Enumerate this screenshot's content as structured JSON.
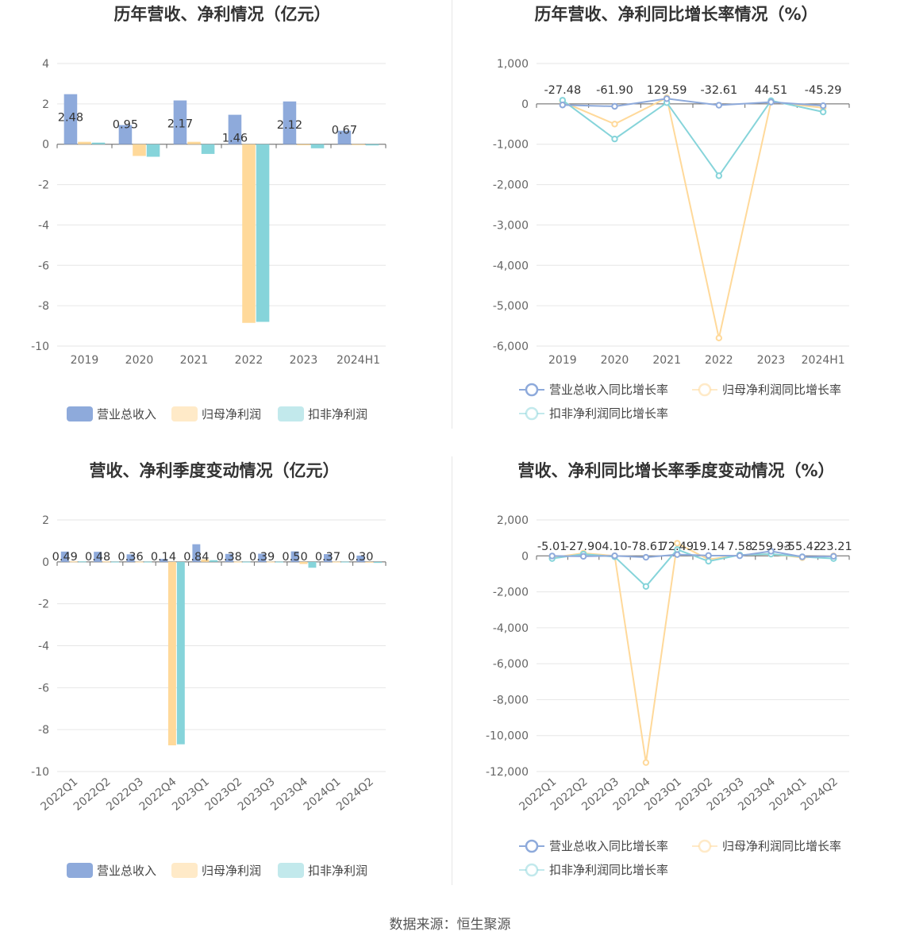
{
  "footer": {
    "source": "数据来源：恒生聚源"
  },
  "colors": {
    "revenue": "#8eaadb",
    "net_profit": "#ffd99a",
    "deducted_profit": "#86d4da"
  },
  "chart_data": [
    {
      "id": "annual_values",
      "type": "bar",
      "title": "历年营收、净利情况（亿元）",
      "categories": [
        "2019",
        "2020",
        "2021",
        "2022",
        "2023",
        "2024H1"
      ],
      "series": [
        {
          "name": "营业总收入",
          "values": [
            2.48,
            0.95,
            2.17,
            1.46,
            2.12,
            0.67
          ]
        },
        {
          "name": "归母净利润",
          "values": [
            0.12,
            -0.58,
            0.12,
            -8.85,
            -0.05,
            -0.04
          ]
        },
        {
          "name": "扣非净利润",
          "values": [
            0.08,
            -0.62,
            -0.48,
            -8.8,
            -0.2,
            -0.06
          ]
        }
      ],
      "data_labels": [
        "2.48",
        "0.95",
        "2.17",
        "1.46",
        "2.12",
        "0.67"
      ],
      "yticks": [
        "4",
        "2",
        "0",
        "-2",
        "-4",
        "-6",
        "-8",
        "-10"
      ],
      "ylim": [
        -10,
        4
      ],
      "legend_position": "bottom"
    },
    {
      "id": "annual_growth",
      "type": "line",
      "title": "历年营收、净利同比增长率情况（%）",
      "categories": [
        "2019",
        "2020",
        "2021",
        "2022",
        "2023",
        "2024H1"
      ],
      "series": [
        {
          "name": "营业总收入同比增长率",
          "values": [
            -27.48,
            -61.9,
            129.59,
            -32.61,
            44.51,
            -45.29
          ]
        },
        {
          "name": "归母净利润同比增长率",
          "values": [
            50,
            -500,
            150,
            -5800,
            50,
            -100
          ]
        },
        {
          "name": "扣非净利润同比增长率",
          "values": [
            90,
            -870,
            30,
            -1780,
            80,
            -200
          ]
        }
      ],
      "data_labels": [
        "-27.48",
        "-61.90",
        "129.59",
        "-32.61",
        "44.51",
        "-45.29"
      ],
      "yticks": [
        "1,000",
        "0",
        "-1,000",
        "-2,000",
        "-3,000",
        "-4,000",
        "-5,000",
        "-6,000"
      ],
      "ylim": [
        -6000,
        1000
      ],
      "legend_position": "bottom"
    },
    {
      "id": "quarterly_values",
      "type": "bar",
      "title": "营收、净利季度变动情况（亿元）",
      "categories": [
        "2022Q1",
        "2022Q2",
        "2022Q3",
        "2022Q4",
        "2023Q1",
        "2023Q2",
        "2023Q3",
        "2023Q4",
        "2024Q1",
        "2024Q2"
      ],
      "series": [
        {
          "name": "营业总收入",
          "values": [
            0.49,
            0.48,
            0.36,
            0.14,
            0.84,
            0.38,
            0.39,
            0.5,
            0.37,
            0.3
          ]
        },
        {
          "name": "归母净利润",
          "values": [
            0.02,
            0.02,
            0.01,
            -8.75,
            0.12,
            0.01,
            0.01,
            -0.1,
            0.01,
            -0.02
          ]
        },
        {
          "name": "扣非净利润",
          "values": [
            0.02,
            0.01,
            0.01,
            -8.7,
            0.08,
            0.01,
            0.01,
            -0.28,
            0.01,
            -0.05
          ]
        }
      ],
      "data_labels": [
        "0.49",
        "0.48",
        "0.36",
        "0.14",
        "0.84",
        "0.38",
        "0.39",
        "0.50",
        "0.37",
        "0.30"
      ],
      "yticks": [
        "2",
        "0",
        "-2",
        "-4",
        "-6",
        "-8",
        "-10"
      ],
      "ylim": [
        -10,
        2
      ],
      "legend_position": "bottom"
    },
    {
      "id": "quarterly_growth",
      "type": "line",
      "title": "营收、净利同比增长率季度变动情况（%）",
      "categories": [
        "2022Q1",
        "2022Q2",
        "2022Q3",
        "2022Q4",
        "2023Q1",
        "2023Q2",
        "2023Q3",
        "2023Q4",
        "2024Q1",
        "2024Q2"
      ],
      "series": [
        {
          "name": "营业总收入同比增长率",
          "values": [
            -5.01,
            -27.9,
            4.1,
            -78.61,
            72.49,
            19.14,
            7.58,
            259.93,
            -55.42,
            -23.21
          ]
        },
        {
          "name": "归母净利润同比增长率",
          "values": [
            -100,
            150,
            0,
            -11500,
            700,
            -200,
            50,
            100,
            -100,
            0
          ]
        },
        {
          "name": "扣非净利润同比增长率",
          "values": [
            -150,
            100,
            -50,
            -1700,
            350,
            -300,
            50,
            100,
            -50,
            -150
          ]
        }
      ],
      "data_labels": [
        "-5.01",
        "-27.90",
        "4.10",
        "-78.61",
        "72.49",
        "19.14",
        "7.58",
        "259.93",
        "-55.42",
        "-23.21"
      ],
      "yticks": [
        "2,000",
        "0",
        "-2,000",
        "-4,000",
        "-6,000",
        "-8,000",
        "-10,000",
        "-12,000"
      ],
      "ylim": [
        -12000,
        2000
      ],
      "legend_position": "bottom"
    }
  ]
}
